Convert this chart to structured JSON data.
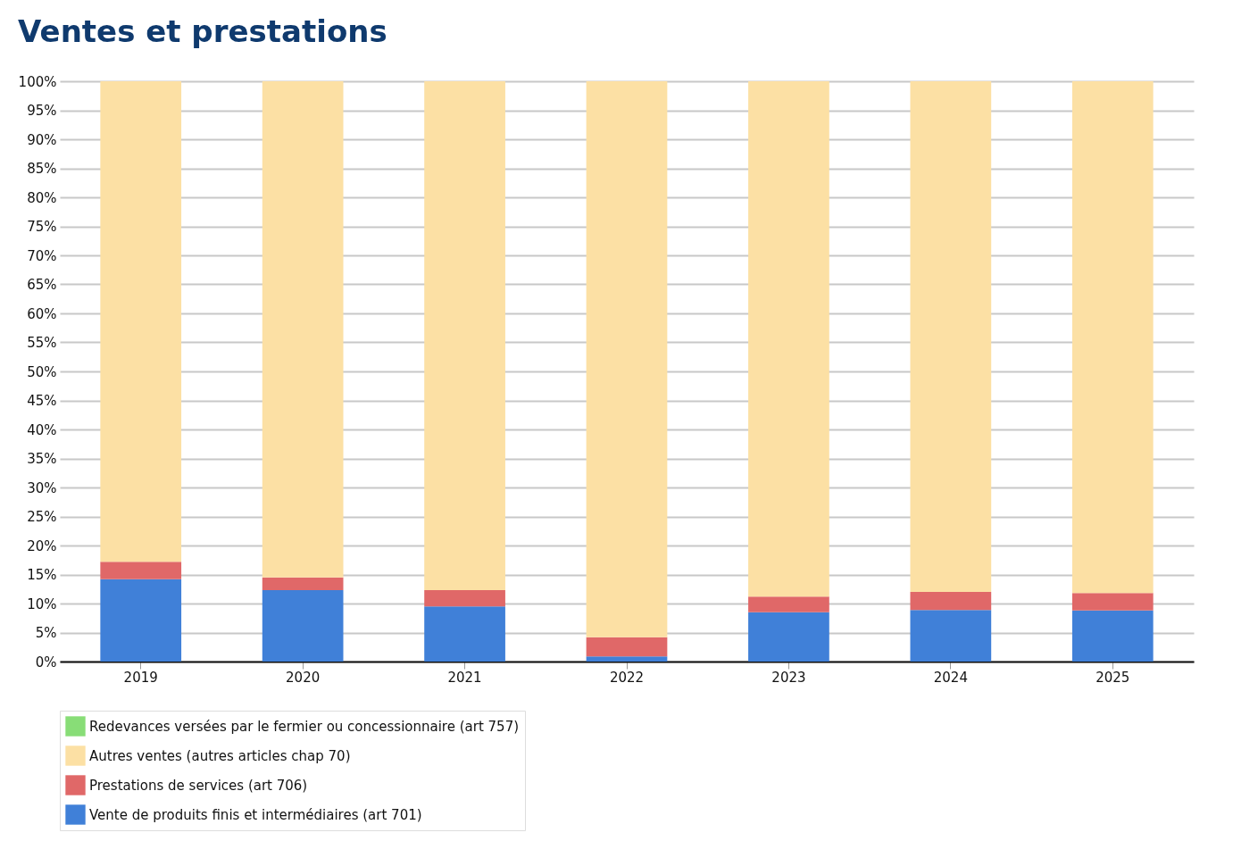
{
  "chart_data": {
    "type": "bar",
    "title": "Ventes et prestations",
    "categories": [
      "2019",
      "2020",
      "2021",
      "2022",
      "2023",
      "2024",
      "2025"
    ],
    "stacked": true,
    "ylim": [
      0,
      100
    ],
    "yticks": [
      {
        "value": 0,
        "label": "0%"
      },
      {
        "value": 5,
        "label": "5%"
      },
      {
        "value": 10,
        "label": "10%"
      },
      {
        "value": 15,
        "label": "15%"
      },
      {
        "value": 20,
        "label": "20%"
      },
      {
        "value": 25,
        "label": "25%"
      },
      {
        "value": 30,
        "label": "30%"
      },
      {
        "value": 35,
        "label": "35%"
      },
      {
        "value": 40,
        "label": "40%"
      },
      {
        "value": 45,
        "label": "45%"
      },
      {
        "value": 50,
        "label": "50%"
      },
      {
        "value": 55,
        "label": "55%"
      },
      {
        "value": 60,
        "label": "60%"
      },
      {
        "value": 65,
        "label": "65%"
      },
      {
        "value": 70,
        "label": "70%"
      },
      {
        "value": 75,
        "label": "75%"
      },
      {
        "value": 80,
        "label": "80%"
      },
      {
        "value": 85,
        "label": "85%"
      },
      {
        "value": 90,
        "label": "90%"
      },
      {
        "value": 95,
        "label": "95%"
      },
      {
        "value": 100,
        "label": "100%"
      }
    ],
    "grid": "y",
    "legend": "bottom",
    "series": [
      {
        "name": "Vente de produits finis et intermédiaires (art 701)",
        "color": "#4080d8",
        "values": [
          14.2,
          12.3,
          9.5,
          0.9,
          8.5,
          8.9,
          8.8
        ]
      },
      {
        "name": "Prestations de services (art 706)",
        "color": "#e06868",
        "values": [
          3.0,
          2.2,
          2.8,
          3.3,
          2.7,
          3.1,
          3.0
        ]
      },
      {
        "name": "Autres ventes (autres articles chap 70)",
        "color": "#fce0a4",
        "values": [
          82.8,
          85.5,
          87.7,
          95.8,
          88.8,
          88.0,
          88.2
        ]
      },
      {
        "name": "Redevances versées par le fermier ou concessionnaire (art 757)",
        "color": "#88dd77",
        "values": [
          0,
          0,
          0,
          0,
          0,
          0,
          0
        ]
      }
    ]
  }
}
